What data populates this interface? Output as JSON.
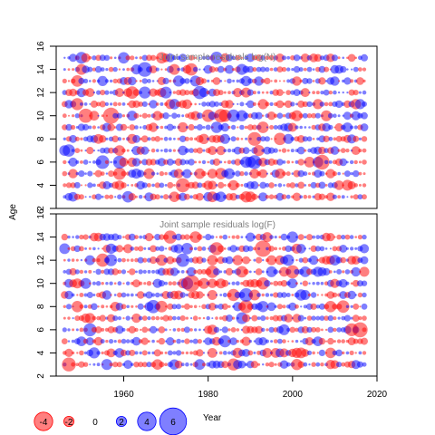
{
  "colors": {
    "positive": "#0000ff",
    "negative": "#ff0000",
    "frame": "#000000",
    "title": "#808080"
  },
  "chart_data": {
    "type": "bubble",
    "ylabel": "Age",
    "xlabel": "Year",
    "xlim": [
      1944,
      2020
    ],
    "x_ticks": [
      1960,
      1980,
      2000,
      2020
    ],
    "legend": {
      "label": "Year",
      "values": [
        -4,
        -2,
        0,
        2,
        4,
        6
      ]
    },
    "panels": [
      {
        "title": "Joint sample residuals log(N)",
        "ylim": [
          2,
          16
        ],
        "y_ticks": [
          2,
          4,
          6,
          8,
          10,
          12,
          14,
          16
        ],
        "years": [
          1946,
          2017
        ],
        "ages": [
          3,
          15
        ],
        "seed": 1729
      },
      {
        "title": "Joint sample residuals log(F)",
        "ylim": [
          2,
          16
        ],
        "y_ticks": [
          2,
          4,
          6,
          8,
          10,
          12,
          14,
          16
        ],
        "years": [
          1946,
          2017
        ],
        "ages": [
          3,
          14
        ],
        "seed": 4242
      }
    ]
  }
}
